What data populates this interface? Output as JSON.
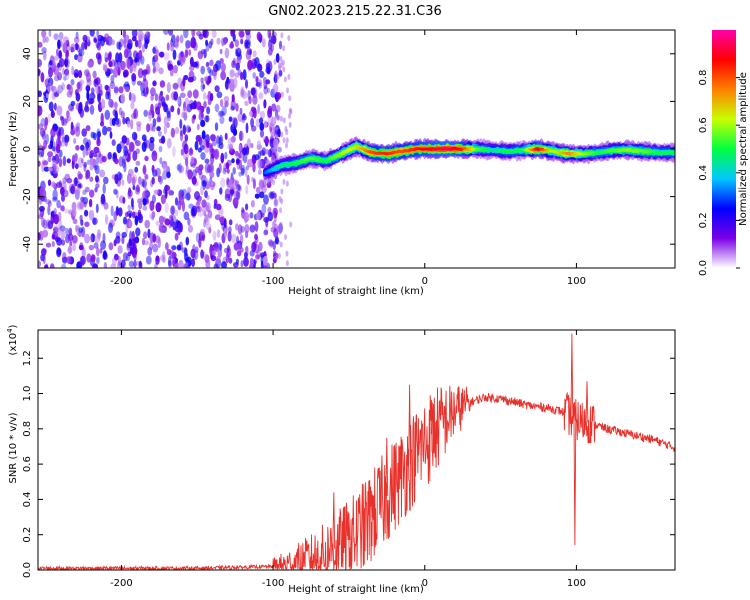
{
  "title": "GN02.2023.215.22.31.C36",
  "chart_data": [
    {
      "type": "heatmap",
      "xlabel": "Height of straight line (km)",
      "ylabel": "Frequency (Hz)",
      "xlim": [
        -255,
        165
      ],
      "ylim": [
        -50,
        50
      ],
      "xticks": [
        -200,
        -100,
        0,
        100
      ],
      "yticks": [
        -40,
        -20,
        0,
        20,
        40
      ],
      "colorbar": {
        "label": "Normalized spectral amplitude",
        "range": [
          0.0,
          1.0
        ],
        "ticks": [
          "0.0",
          "0.2",
          "0.4",
          "0.6",
          "0.8"
        ],
        "colors": [
          "#ffffff",
          "#7a00e6",
          "#0000ff",
          "#00c8ff",
          "#00ff40",
          "#c8ff00",
          "#ff8000",
          "#ff0000",
          "#ff00aa"
        ]
      },
      "noise_region_x": [
        -255,
        -100
      ],
      "ridge": [
        {
          "x": -105,
          "y": -10,
          "v": 0.3
        },
        {
          "x": -95,
          "y": -7,
          "v": 0.45
        },
        {
          "x": -85,
          "y": -6,
          "v": 0.5
        },
        {
          "x": -75,
          "y": -4,
          "v": 0.55
        },
        {
          "x": -65,
          "y": -5,
          "v": 0.5
        },
        {
          "x": -55,
          "y": -2,
          "v": 0.6
        },
        {
          "x": -45,
          "y": 1,
          "v": 0.65
        },
        {
          "x": -35,
          "y": -1.5,
          "v": 0.8
        },
        {
          "x": -25,
          "y": -2,
          "v": 0.85
        },
        {
          "x": -15,
          "y": -1,
          "v": 0.8
        },
        {
          "x": -5,
          "y": 0,
          "v": 0.85
        },
        {
          "x": 5,
          "y": 0,
          "v": 0.9
        },
        {
          "x": 15,
          "y": 0,
          "v": 0.95
        },
        {
          "x": 25,
          "y": 0,
          "v": 0.85
        },
        {
          "x": 35,
          "y": 0,
          "v": 0.55
        },
        {
          "x": 45,
          "y": -0.5,
          "v": 0.45
        },
        {
          "x": 55,
          "y": -1,
          "v": 0.5
        },
        {
          "x": 65,
          "y": -0.5,
          "v": 0.5
        },
        {
          "x": 75,
          "y": 0,
          "v": 0.9
        },
        {
          "x": 85,
          "y": -1,
          "v": 0.6
        },
        {
          "x": 95,
          "y": -2,
          "v": 0.75
        },
        {
          "x": 105,
          "y": -2,
          "v": 0.6
        },
        {
          "x": 115,
          "y": -1.5,
          "v": 0.5
        },
        {
          "x": 125,
          "y": -0.5,
          "v": 0.55
        },
        {
          "x": 135,
          "y": -0.5,
          "v": 0.6
        },
        {
          "x": 145,
          "y": -1,
          "v": 0.55
        },
        {
          "x": 155,
          "y": -1.5,
          "v": 0.5
        },
        {
          "x": 165,
          "y": -1.5,
          "v": 0.5
        }
      ]
    },
    {
      "type": "line",
      "xlabel": "Height of straight line (km)",
      "ylabel": "SNR (10 * v/v)",
      "multiplier": "(x10",
      "multiplier_exp": "4",
      "multiplier_close": ")",
      "xlim": [
        -255,
        165
      ],
      "ylim": [
        0.0,
        1.36
      ],
      "xticks": [
        -200,
        -100,
        0,
        100
      ],
      "yticks": [
        "0.0",
        "0.2",
        "0.4",
        "0.6",
        "0.8",
        "1.0",
        "1.2"
      ],
      "color": "#e8312b",
      "series": [
        {
          "x": [
            -255,
            -200,
            -150,
            -100,
            -90,
            -80,
            -70,
            -60,
            -50,
            -45,
            -40,
            -35,
            -30,
            -25,
            -20,
            -15,
            -10,
            -5,
            0,
            10,
            20,
            30,
            40,
            50,
            60,
            70,
            80,
            90,
            95,
            98,
            100,
            105,
            110,
            120,
            130,
            140,
            150,
            160,
            165
          ],
          "y": [
            0.01,
            0.01,
            0.01,
            0.02,
            0.03,
            0.05,
            0.08,
            0.12,
            0.17,
            0.2,
            0.24,
            0.3,
            0.36,
            0.42,
            0.48,
            0.54,
            0.6,
            0.66,
            0.72,
            0.82,
            0.9,
            0.95,
            0.98,
            0.97,
            0.95,
            0.93,
            0.92,
            0.9,
            0.88,
            0.85,
            0.85,
            0.84,
            0.83,
            0.8,
            0.78,
            0.76,
            0.74,
            0.71,
            0.69
          ]
        }
      ],
      "spikes": [
        {
          "x": -60,
          "y": 0.44
        },
        {
          "x": -50,
          "y": 0.32
        },
        {
          "x": -35,
          "y": 0.45
        },
        {
          "x": -25,
          "y": 0.75
        },
        {
          "x": -10,
          "y": 1.05
        },
        {
          "x": 5,
          "y": 0.95
        },
        {
          "x": 97,
          "y": 1.34
        },
        {
          "x": 99,
          "y": 0.14
        },
        {
          "x": 107,
          "y": 1.07
        }
      ]
    }
  ]
}
